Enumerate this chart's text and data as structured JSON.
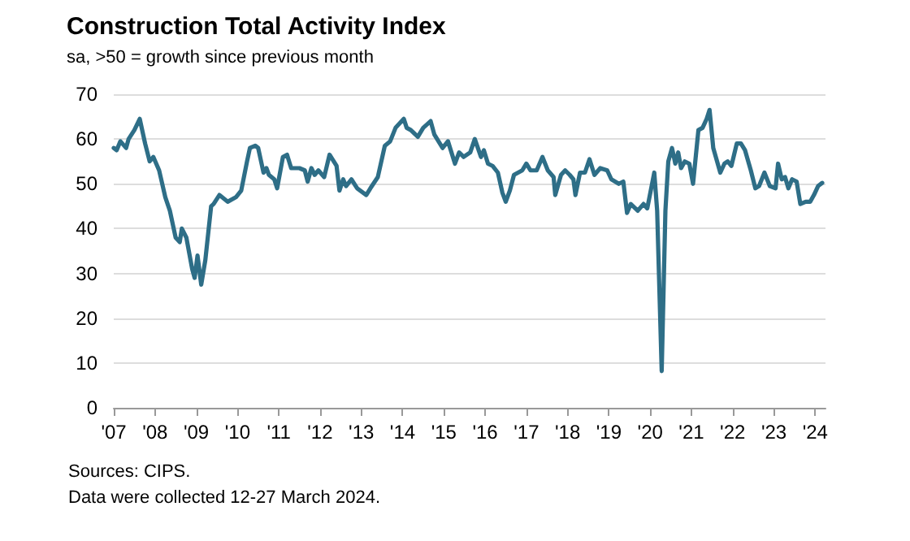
{
  "chart_data": {
    "type": "line",
    "title": "Construction Total Activity Index",
    "subtitle": "sa, >50 = growth since previous month",
    "annotations": [
      "Sources: CIPS.",
      "Data were collected 12-27 March 2024."
    ],
    "x": [
      2007.0,
      2007.07,
      2007.16,
      2007.3,
      2007.36,
      2007.5,
      2007.63,
      2007.76,
      2007.87,
      2007.96,
      2008.1,
      2008.25,
      2008.36,
      2008.5,
      2008.6,
      2008.65,
      2008.76,
      2008.9,
      2008.96,
      2009.03,
      2009.12,
      2009.22,
      2009.36,
      2009.42,
      2009.56,
      2009.76,
      2009.96,
      2010.09,
      2010.23,
      2010.3,
      2010.43,
      2010.5,
      2010.63,
      2010.7,
      2010.76,
      2010.89,
      2010.96,
      2011.1,
      2011.2,
      2011.3,
      2011.5,
      2011.63,
      2011.7,
      2011.79,
      2011.87,
      2011.96,
      2012.1,
      2012.23,
      2012.4,
      2012.47,
      2012.56,
      2012.63,
      2012.76,
      2012.9,
      2013.12,
      2013.22,
      2013.4,
      2013.57,
      2013.7,
      2013.83,
      2014.03,
      2014.1,
      2014.2,
      2014.37,
      2014.5,
      2014.68,
      2014.77,
      2014.97,
      2015.1,
      2015.27,
      2015.37,
      2015.48,
      2015.64,
      2015.75,
      2015.9,
      2015.97,
      2016.07,
      2016.18,
      2016.31,
      2016.42,
      2016.5,
      2016.6,
      2016.7,
      2016.9,
      2017.0,
      2017.1,
      2017.25,
      2017.39,
      2017.52,
      2017.66,
      2017.7,
      2017.84,
      2017.94,
      2018.05,
      2018.14,
      2018.19,
      2018.3,
      2018.42,
      2018.53,
      2018.65,
      2018.79,
      2018.96,
      2019.06,
      2019.24,
      2019.35,
      2019.44,
      2019.53,
      2019.7,
      2019.84,
      2019.93,
      2020.1,
      2020.17,
      2020.28,
      2020.37,
      2020.44,
      2020.53,
      2020.61,
      2020.68,
      2020.75,
      2020.84,
      2020.95,
      2021.04,
      2021.17,
      2021.27,
      2021.37,
      2021.44,
      2021.53,
      2021.7,
      2021.8,
      2021.88,
      2021.97,
      2022.1,
      2022.2,
      2022.3,
      2022.44,
      2022.55,
      2022.64,
      2022.77,
      2022.9,
      2023.04,
      2023.1,
      2023.19,
      2023.27,
      2023.35,
      2023.44,
      2023.55,
      2023.64,
      2023.77,
      2023.88,
      2023.97,
      2024.07,
      2024.17
    ],
    "values": [
      58,
      57.5,
      59.5,
      58,
      60,
      62,
      64.5,
      59,
      55,
      56,
      53,
      47,
      44,
      38,
      37,
      40,
      38,
      31,
      29,
      34,
      27.5,
      33,
      45,
      45.5,
      47.5,
      46,
      47,
      48.5,
      55,
      58,
      58.5,
      58,
      52.5,
      53.5,
      52,
      51,
      49,
      56,
      56.5,
      53.5,
      53.5,
      53,
      50.5,
      53.5,
      52,
      53,
      51.5,
      56.5,
      54,
      48.5,
      51,
      49.5,
      51,
      49,
      47.5,
      49,
      51.5,
      58.5,
      59.5,
      62.5,
      64.5,
      62.5,
      62,
      60.5,
      62.5,
      64,
      61,
      58,
      59.5,
      54.5,
      57,
      56,
      57,
      60,
      56,
      57.5,
      54.5,
      54,
      52.5,
      48,
      46,
      48.5,
      52,
      53,
      54.5,
      53,
      53,
      56,
      53,
      51.5,
      47.5,
      52,
      53,
      52,
      51,
      47.5,
      52.5,
      52.5,
      55.5,
      52,
      53.5,
      53,
      51,
      50,
      50.5,
      43.5,
      45.5,
      44,
      45.5,
      44.5,
      52.5,
      44,
      8.2,
      44,
      55,
      58,
      54.5,
      57,
      53.5,
      55,
      54.5,
      50,
      62,
      62.5,
      64.5,
      66.5,
      58,
      52.5,
      54.5,
      55,
      54,
      59,
      59,
      57.5,
      53,
      49,
      49.5,
      52.5,
      49.5,
      49,
      54.5,
      51,
      51.5,
      49,
      51,
      50.5,
      45.5,
      46,
      46,
      47.5,
      49.5,
      50.2
    ],
    "color": "#2e6e87",
    "line_style": "solid",
    "marker": "none",
    "grid": "y",
    "xlim": [
      2007,
      2024.25
    ],
    "xticks": [
      {
        "value": 2007,
        "label": "'07"
      },
      {
        "value": 2008,
        "label": "'08"
      },
      {
        "value": 2009,
        "label": "'09"
      },
      {
        "value": 2010,
        "label": "'10"
      },
      {
        "value": 2011,
        "label": "'11"
      },
      {
        "value": 2012,
        "label": "'12"
      },
      {
        "value": 2013,
        "label": "'13"
      },
      {
        "value": 2014,
        "label": "'14"
      },
      {
        "value": 2015,
        "label": "'15"
      },
      {
        "value": 2016,
        "label": "'16"
      },
      {
        "value": 2017,
        "label": "'17"
      },
      {
        "value": 2018,
        "label": "'18"
      },
      {
        "value": 2019,
        "label": "'19"
      },
      {
        "value": 2020,
        "label": "'20"
      },
      {
        "value": 2021,
        "label": "'21"
      },
      {
        "value": 2022,
        "label": "'22"
      },
      {
        "value": 2023,
        "label": "'23"
      },
      {
        "value": 2024,
        "label": "'24"
      }
    ],
    "ylim": [
      0,
      70
    ],
    "yticks": [
      0,
      10,
      20,
      30,
      40,
      50,
      60,
      70
    ]
  }
}
